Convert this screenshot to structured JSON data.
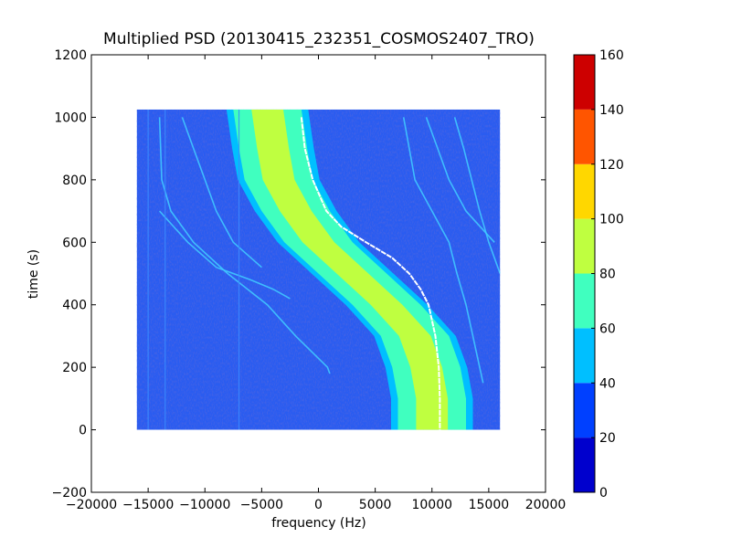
{
  "chart_data": {
    "type": "heatmap",
    "title": "Multiplied PSD (20130415_232351_COSMOS2407_TRO)",
    "xlabel": "frequency (Hz)",
    "ylabel": "time (s)",
    "xlim": [
      -20000,
      20000
    ],
    "ylim": [
      -200,
      1200
    ],
    "x_ticks": [
      -20000,
      -15000,
      -10000,
      -5000,
      0,
      5000,
      10000,
      15000,
      20000
    ],
    "y_ticks": [
      -200,
      0,
      200,
      400,
      600,
      800,
      1000,
      1200
    ],
    "x_tick_labels": [
      "−20000",
      "−15000",
      "−10000",
      "−5000",
      "0",
      "5000",
      "10000",
      "15000",
      "20000"
    ],
    "y_tick_labels": [
      "−200",
      "0",
      "200",
      "400",
      "600",
      "800",
      "1000",
      "1200"
    ],
    "data_extent": {
      "x": [
        -16000,
        16000
      ],
      "y": [
        0,
        1025
      ]
    },
    "colorbar": {
      "range": [
        0,
        160
      ],
      "ticks": [
        0,
        20,
        40,
        60,
        80,
        100,
        120,
        140,
        160
      ],
      "tick_labels": [
        "0",
        "20",
        "40",
        "60",
        "80",
        "100",
        "120",
        "140",
        "160"
      ],
      "colors": [
        "#0000cd",
        "#0040ff",
        "#00bfff",
        "#40ffbf",
        "#bfff40",
        "#ffd700",
        "#ff5500",
        "#cd0000"
      ]
    },
    "background_level_color": "#2a5cf0",
    "background_dark_color": "#1030d8",
    "main_band": {
      "description_points_time_s": [
        1025,
        900,
        800,
        700,
        600,
        500,
        400,
        300,
        200,
        100,
        0
      ],
      "center_frequency_hz": [
        -4500,
        -4000,
        -3500,
        -2000,
        0,
        3000,
        6000,
        8500,
        9500,
        10000,
        10000
      ],
      "core_color": "#bfff40",
      "band_color": "#40ffbf",
      "edge_color": "#00bfff"
    },
    "white_trace": {
      "time_s": [
        1000,
        900,
        800,
        700,
        650,
        600,
        550,
        500,
        450,
        400,
        300,
        200,
        100,
        0
      ],
      "frequency_hz": [
        -1500,
        -1200,
        -500,
        700,
        2000,
        4200,
        6500,
        8000,
        9000,
        9700,
        10300,
        10600,
        10700,
        10700
      ]
    },
    "secondary_traces": [
      {
        "time_s": [
          1000,
          800,
          700,
          600,
          500,
          400,
          300,
          200,
          150
        ],
        "frequency_hz": [
          7500,
          8500,
          10000,
          11500,
          12200,
          13000,
          13600,
          14200,
          14500
        ]
      },
      {
        "time_s": [
          1000,
          900,
          800,
          700,
          600
        ],
        "frequency_hz": [
          9500,
          10500,
          11500,
          13000,
          15500
        ]
      },
      {
        "time_s": [
          1000,
          900,
          800,
          700,
          600,
          500
        ],
        "frequency_hz": [
          12000,
          12800,
          13500,
          14200,
          15000,
          16000
        ]
      },
      {
        "time_s": [
          1000,
          800,
          700,
          600,
          500,
          400,
          300,
          200,
          180
        ],
        "frequency_hz": [
          -14000,
          -13800,
          -13000,
          -11000,
          -8000,
          -4500,
          -2000,
          800,
          1000
        ]
      },
      {
        "time_s": [
          1000,
          900,
          800,
          700,
          600,
          520
        ],
        "frequency_hz": [
          -12000,
          -11000,
          -10000,
          -9000,
          -7500,
          -5000
        ]
      },
      {
        "time_s": [
          700,
          600,
          520,
          480,
          450,
          420
        ],
        "frequency_hz": [
          -14000,
          -11500,
          -9000,
          -6000,
          -4000,
          -2500
        ]
      }
    ],
    "vertical_lines_hz": [
      -15000,
      -13500,
      -7000
    ],
    "grid": false,
    "legend": "colorbar-right"
  }
}
